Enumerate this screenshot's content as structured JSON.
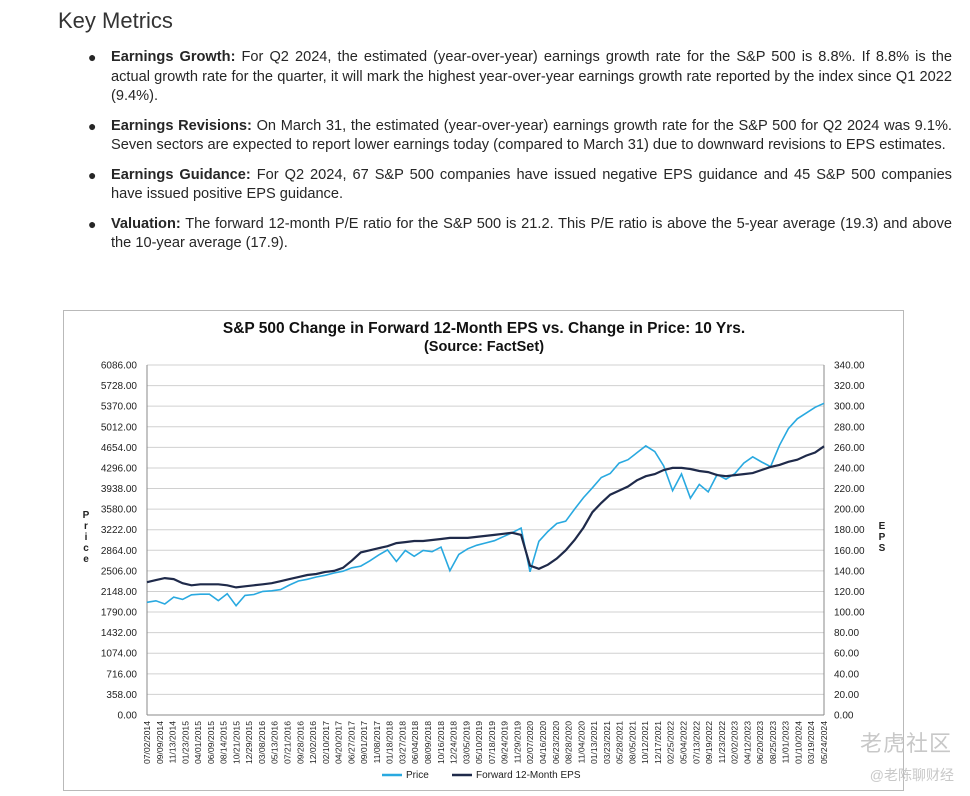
{
  "section": {
    "title": "Key Metrics"
  },
  "metrics": [
    {
      "label": "Earnings Growth:",
      "text": "For Q2 2024, the estimated (year-over-year) earnings growth rate for the S&P 500 is 8.8%. If 8.8% is the actual growth rate for the quarter, it will mark the highest year-over-year earnings growth rate reported by the index since Q1 2022 (9.4%)."
    },
    {
      "label": "Earnings Revisions:",
      "text": "On March 31, the estimated (year-over-year) earnings growth rate for the S&P 500 for Q2 2024 was 9.1%. Seven sectors are expected to report lower earnings today (compared to March 31) due to downward revisions to EPS estimates."
    },
    {
      "label": "Earnings Guidance:",
      "text": "For Q2 2024, 67 S&P 500 companies have issued negative EPS guidance and 45 S&P 500 companies have issued positive EPS guidance."
    },
    {
      "label": "Valuation:",
      "text": "The forward 12-month P/E ratio for the S&P 500 is 21.2. This P/E ratio is above the 5-year average (19.3) and above the 10-year average (17.9)."
    }
  ],
  "watermark": {
    "main": "老虎社区",
    "sub": "@老陈聊财经"
  },
  "chart_data": {
    "type": "line",
    "title": "S&P 500 Change in Forward 12-Month EPS vs. Change in Price: 10 Yrs.",
    "subtitle": "(Source: FactSet)",
    "ylabel": "Price",
    "y2label": "EPS",
    "ylim": [
      0,
      6086
    ],
    "y2lim": [
      0,
      340
    ],
    "y_ticks": [
      "6086.00",
      "5728.00",
      "5370.00",
      "5012.00",
      "4654.00",
      "4296.00",
      "3938.00",
      "3580.00",
      "3222.00",
      "2864.00",
      "2506.00",
      "2148.00",
      "1790.00",
      "1432.00",
      "1074.00",
      "716.00",
      "358.00",
      "0.00"
    ],
    "y2_ticks": [
      "340.00",
      "320.00",
      "300.00",
      "280.00",
      "260.00",
      "240.00",
      "220.00",
      "200.00",
      "180.00",
      "160.00",
      "140.00",
      "120.00",
      "100.00",
      "80.00",
      "60.00",
      "40.00",
      "20.00",
      "0.00"
    ],
    "x_ticks": [
      "07/02/2014",
      "09/09/2014",
      "11/13/2014",
      "01/23/2015",
      "04/01/2015",
      "06/09/2015",
      "08/14/2015",
      "10/21/2015",
      "12/29/2015",
      "03/08/2016",
      "05/13/2016",
      "07/21/2016",
      "09/28/2016",
      "12/02/2016",
      "02/10/2017",
      "04/20/2017",
      "06/27/2017",
      "09/01/2017",
      "11/08/2017",
      "01/18/2018",
      "03/27/2018",
      "06/04/2018",
      "08/09/2018",
      "10/16/2018",
      "12/24/2018",
      "03/05/2019",
      "05/10/2019",
      "07/18/2019",
      "09/24/2019",
      "11/29/2019",
      "02/07/2020",
      "04/16/2020",
      "06/23/2020",
      "08/28/2020",
      "11/04/2020",
      "01/13/2021",
      "03/23/2021",
      "05/28/2021",
      "08/05/2021",
      "10/12/2021",
      "12/17/2021",
      "02/25/2022",
      "05/04/2022",
      "07/13/2022",
      "09/19/2022",
      "11/23/2022",
      "02/02/2023",
      "04/12/2023",
      "06/20/2023",
      "08/25/2023",
      "11/01/2023",
      "01/10/2024",
      "03/19/2024",
      "05/24/2024"
    ],
    "legend_position": "bottom",
    "grid": true,
    "colors": {
      "price": "#29a9e0",
      "eps": "#1f2a4a"
    },
    "series": [
      {
        "name": "Price",
        "axis": "left",
        "values": [
          1960,
          1985,
          1930,
          2050,
          2010,
          2090,
          2100,
          2100,
          1990,
          2110,
          1900,
          2080,
          2095,
          2150,
          2160,
          2180,
          2260,
          2330,
          2360,
          2400,
          2430,
          2470,
          2500,
          2560,
          2590,
          2680,
          2780,
          2870,
          2670,
          2860,
          2760,
          2860,
          2840,
          2920,
          2510,
          2790,
          2890,
          2950,
          2990,
          3030,
          3100,
          3170,
          3250,
          2490,
          3020,
          3190,
          3330,
          3370,
          3580,
          3780,
          3950,
          4130,
          4200,
          4380,
          4440,
          4560,
          4680,
          4580,
          4330,
          3900,
          4190,
          3770,
          4010,
          3880,
          4180,
          4100,
          4200,
          4380,
          4490,
          4400,
          4320,
          4690,
          4980,
          5150,
          5250,
          5350,
          5420
        ]
      },
      {
        "name": "Forward 12-Month EPS",
        "axis": "right",
        "values": [
          129,
          131,
          133,
          132,
          128,
          126,
          127,
          127,
          127,
          126,
          124,
          125,
          126,
          127,
          128,
          130,
          132,
          134,
          136,
          137,
          139,
          140,
          143,
          150,
          158,
          160,
          162,
          164,
          167,
          168,
          169,
          169,
          170,
          171,
          172,
          172,
          172,
          173,
          174,
          175,
          176,
          177,
          175,
          145,
          142,
          146,
          152,
          160,
          170,
          182,
          197,
          206,
          214,
          218,
          222,
          228,
          232,
          234,
          238,
          240,
          240,
          239,
          237,
          236,
          233,
          232,
          233,
          234,
          235,
          238,
          241,
          243,
          246,
          248,
          252,
          255,
          261
        ]
      }
    ]
  }
}
